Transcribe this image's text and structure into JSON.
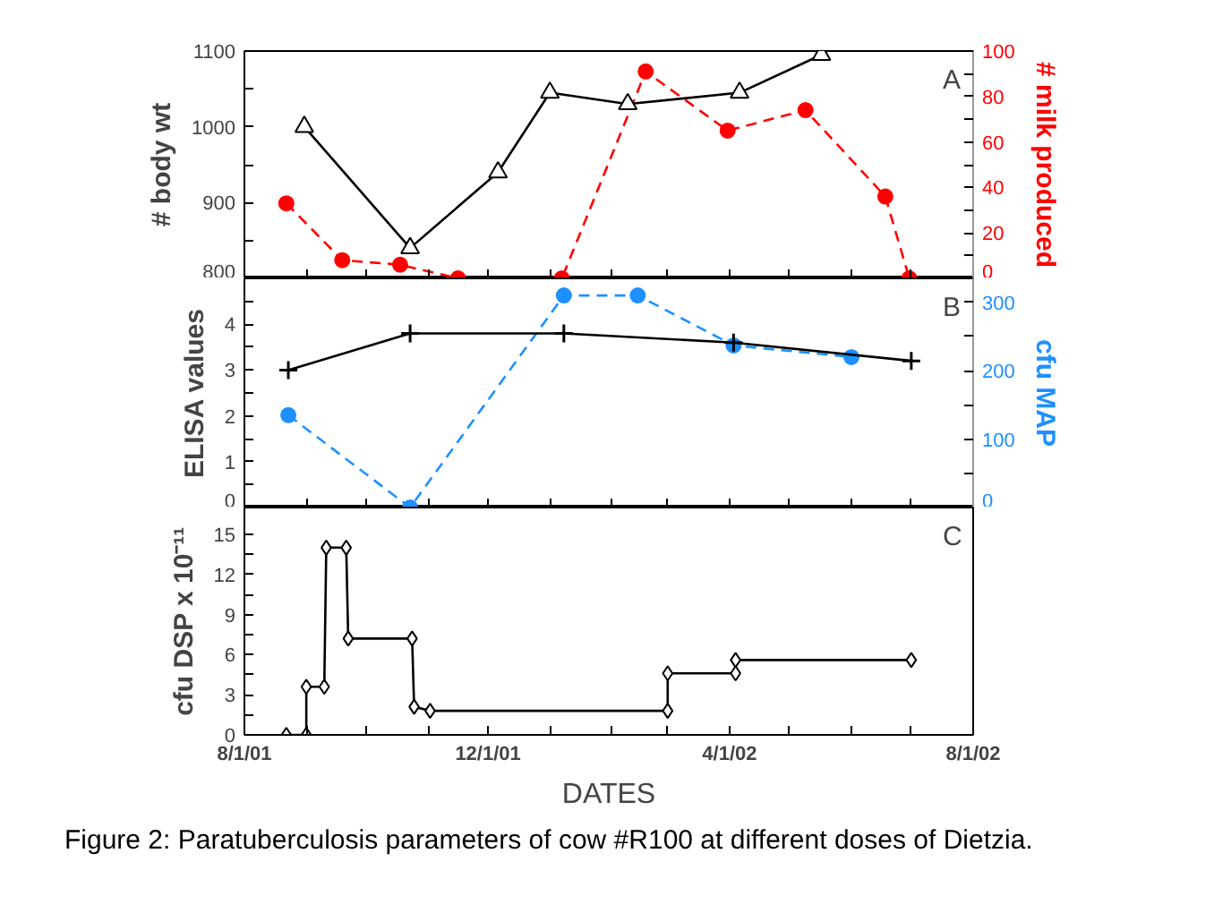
{
  "chart_data": [
    {
      "type": "line",
      "ylabel": "# body wt",
      "y2label": "# milk produced",
      "annotations": [
        "A"
      ],
      "tick_labels": "y",
      "grid": false,
      "xlim": [
        "2001-08-01",
        "2002-08-01"
      ],
      "xticks": [
        {
          "value": "2001-08-01",
          "label": null
        },
        {
          "value": "2001-09-01",
          "label": null
        },
        {
          "value": "2001-10-01",
          "label": null
        },
        {
          "value": "2001-11-01",
          "label": null
        },
        {
          "value": "2001-12-01",
          "label": null
        },
        {
          "value": "2002-01-01",
          "label": null
        },
        {
          "value": "2002-02-01",
          "label": null
        },
        {
          "value": "2002-03-01",
          "label": null
        },
        {
          "value": "2002-04-01",
          "label": null
        },
        {
          "value": "2002-05-01",
          "label": null
        },
        {
          "value": "2002-06-01",
          "label": null
        },
        {
          "value": "2002-07-01",
          "label": null
        },
        {
          "value": "2002-08-01",
          "label": null
        }
      ],
      "ylim": [
        800,
        1100
      ],
      "yticks": [
        800,
        {
          "value": 850,
          "label": null
        },
        900,
        {
          "value": 950,
          "label": null
        },
        1000,
        {
          "value": 1050,
          "label": null
        },
        1100
      ],
      "y2lim": [
        0,
        100
      ],
      "y2ticks": [
        0,
        {
          "value": 10,
          "label": null
        },
        20,
        {
          "value": 30,
          "label": null
        },
        40,
        {
          "value": 50,
          "label": null
        },
        60,
        {
          "value": 70,
          "label": null
        },
        80,
        {
          "value": 90,
          "label": null
        },
        100
      ],
      "series": [
        {
          "color": "#000000",
          "marker": "triangle",
          "line_style": "solid",
          "x": [
            "2001-08-31",
            "2001-10-23",
            "2001-12-06",
            "2002-01-01",
            "2002-02-09",
            "2002-04-06",
            "2002-05-17"
          ],
          "values": [
            1000,
            840,
            940,
            1045,
            1030,
            1045,
            1095
          ]
        },
        {
          "color": "#ff0000",
          "axis": "y2",
          "marker": "circle",
          "line_style": "dashed",
          "x": [
            "2001-08-22",
            "2001-09-19",
            "2001-10-18",
            "2001-11-16",
            "2002-01-07",
            "2002-02-18",
            "2002-03-31",
            "2002-05-09",
            "2002-06-18",
            "2002-06-30"
          ],
          "values": [
            33,
            8,
            6,
            0,
            0,
            91,
            65,
            74,
            36,
            0
          ]
        }
      ]
    },
    {
      "type": "line",
      "ylabel": "ELISA values",
      "y2label": "cfu MAP",
      "annotations": [
        "B"
      ],
      "tick_labels": "y",
      "grid": false,
      "xlim": [
        "2001-08-01",
        "2002-08-01"
      ],
      "xticks": [
        {
          "value": "2001-08-01",
          "label": null
        },
        {
          "value": "2001-09-01",
          "label": null
        },
        {
          "value": "2001-10-01",
          "label": null
        },
        {
          "value": "2001-11-01",
          "label": null
        },
        {
          "value": "2001-12-01",
          "label": null
        },
        {
          "value": "2002-01-01",
          "label": null
        },
        {
          "value": "2002-02-01",
          "label": null
        },
        {
          "value": "2002-03-01",
          "label": null
        },
        {
          "value": "2002-04-01",
          "label": null
        },
        {
          "value": "2002-05-01",
          "label": null
        },
        {
          "value": "2002-06-01",
          "label": null
        },
        {
          "value": "2002-07-01",
          "label": null
        },
        {
          "value": "2002-08-01",
          "label": null
        }
      ],
      "ylim": [
        0,
        5
      ],
      "yticks": [
        0,
        {
          "value": 0.5,
          "label": null
        },
        1,
        {
          "value": 1.5,
          "label": null
        },
        2,
        {
          "value": 2.5,
          "label": null
        },
        3,
        {
          "value": 3.5,
          "label": null
        },
        4,
        {
          "value": 4.5,
          "label": null
        }
      ],
      "y2lim": [
        0,
        335
      ],
      "y2ticks": [
        0,
        {
          "value": 50,
          "label": null
        },
        100,
        {
          "value": 150,
          "label": null
        },
        200,
        {
          "value": 250,
          "label": null
        },
        300
      ],
      "series": [
        {
          "color": "#000000",
          "marker": "cross",
          "line_style": "solid",
          "x": [
            "2001-08-23",
            "2001-10-23",
            "2002-01-08",
            "2002-04-03",
            "2002-07-01"
          ],
          "values": [
            3.0,
            3.8,
            3.8,
            3.6,
            3.2
          ]
        },
        {
          "color": "#1e90ff",
          "axis": "y2",
          "marker": "circle",
          "line_style": "dashed",
          "x": [
            "2001-08-23",
            "2001-10-23",
            "2002-01-08",
            "2002-02-14",
            "2002-04-03",
            "2002-06-01"
          ],
          "values": [
            135,
            0,
            310,
            310,
            237,
            220
          ]
        }
      ]
    },
    {
      "type": "line",
      "xlabel": "DATES",
      "ylabel": "cfu DSP x 10⁻¹¹",
      "annotations": [
        "C",
        "Figure 2: Paratuberculosis parameters of cow #R100 at different doses of Dietzia."
      ],
      "grid": false,
      "xlim": [
        "2001-08-01",
        "2002-08-01"
      ],
      "xticks": [
        {
          "value": "2001-08-01",
          "label": "8/1/01"
        },
        {
          "value": "2001-09-01",
          "label": null
        },
        {
          "value": "2001-10-01",
          "label": null
        },
        {
          "value": "2001-11-01",
          "label": null
        },
        {
          "value": "2001-12-01",
          "label": "12/1/01"
        },
        {
          "value": "2002-01-01",
          "label": null
        },
        {
          "value": "2002-02-01",
          "label": null
        },
        {
          "value": "2002-03-01",
          "label": null
        },
        {
          "value": "2002-04-01",
          "label": "4/1/02"
        },
        {
          "value": "2002-05-01",
          "label": null
        },
        {
          "value": "2002-06-01",
          "label": null
        },
        {
          "value": "2002-07-01",
          "label": null
        },
        {
          "value": "2002-08-01",
          "label": "8/1/02"
        }
      ],
      "ylim": [
        0,
        17
      ],
      "yticks": [
        0,
        {
          "value": 1.5,
          "label": null
        },
        3,
        {
          "value": 4.5,
          "label": null
        },
        6,
        {
          "value": 7.5,
          "label": null
        },
        9,
        {
          "value": 10.5,
          "label": null
        },
        12,
        {
          "value": 13.5,
          "label": null
        },
        15
      ],
      "series": [
        {
          "color": "#000000",
          "marker": "diamond",
          "line_style": "solid",
          "x": [
            "2001-08-22",
            "2001-09-01",
            "2001-09-01",
            "2001-09-10",
            "2001-09-11",
            "2001-09-21",
            "2001-09-22",
            "2001-10-24",
            "2001-10-25",
            "2001-11-02",
            "2002-03-01",
            "2002-03-01",
            "2002-04-04",
            "2002-04-04",
            "2002-07-01"
          ],
          "values": [
            0,
            0,
            3.6,
            3.6,
            14,
            14,
            7.2,
            7.2,
            2.1,
            1.8,
            1.8,
            4.6,
            4.6,
            5.6,
            5.6
          ]
        }
      ]
    }
  ]
}
